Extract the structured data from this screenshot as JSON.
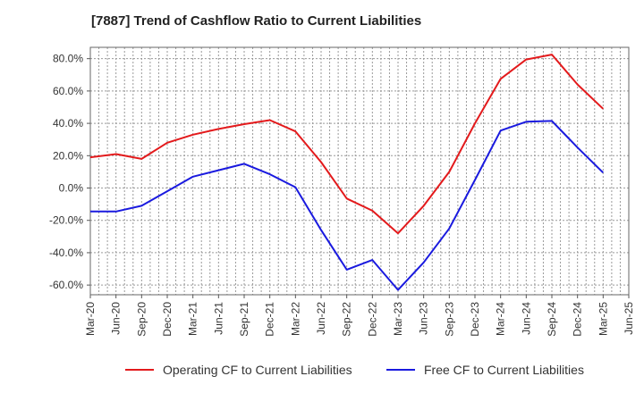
{
  "chart_data": {
    "type": "line",
    "title": "[7887]  Trend of Cashflow Ratio to Current Liabilities",
    "xlabel": "",
    "ylabel": "",
    "x": [
      "Mar-20",
      "Jun-20",
      "Sep-20",
      "Dec-20",
      "Mar-21",
      "Jun-21",
      "Sep-21",
      "Dec-21",
      "Mar-22",
      "Jun-22",
      "Sep-22",
      "Dec-22",
      "Mar-23",
      "Jun-23",
      "Sep-23",
      "Dec-23",
      "Mar-24",
      "Jun-24",
      "Sep-24",
      "Dec-24",
      "Mar-25",
      "Jun-25"
    ],
    "y_ticks": [
      "80.0%",
      "60.0%",
      "40.0%",
      "20.0%",
      "0.0%",
      "-20.0%",
      "-40.0%",
      "-60.0%"
    ],
    "ylim": [
      -66,
      87
    ],
    "grid": true,
    "legend_position": "bottom",
    "series": [
      {
        "name": "Operating CF to Current Liabilities",
        "color": "#e31a1c",
        "values": [
          19,
          21,
          18,
          28,
          33,
          36.5,
          39.5,
          42,
          35,
          16,
          -6.5,
          -14,
          -28,
          -11,
          10,
          40,
          67.5,
          79.5,
          82.5,
          64,
          49,
          null
        ]
      },
      {
        "name": "Free CF to Current Liabilities",
        "color": "#1a1adf",
        "values": [
          -14.5,
          -14.5,
          -11,
          -2,
          7,
          11,
          15,
          8.5,
          0.5,
          -26,
          -50.5,
          -44.5,
          -63,
          -46,
          -25,
          5,
          35.5,
          41,
          41.5,
          25,
          9.5,
          null
        ]
      }
    ]
  }
}
